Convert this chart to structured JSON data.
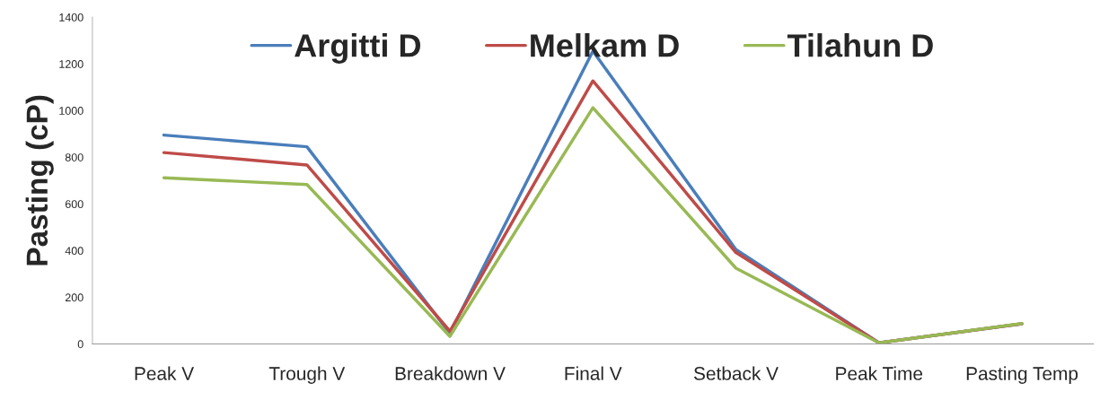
{
  "chart_data": {
    "type": "line",
    "ylabel": "Pasting (cP)",
    "categories": [
      "Peak V",
      "Trough V",
      "Breakdown V",
      "Final V",
      "Setback V",
      "Peak Time",
      "Pasting Temp"
    ],
    "series": [
      {
        "name": "Argitti D",
        "color": "#4a7ebb",
        "values": [
          895,
          845,
          46,
          1255,
          405,
          5,
          87
        ]
      },
      {
        "name": "Melkam D",
        "color": "#be4b48",
        "values": [
          820,
          767,
          55,
          1127,
          392,
          5,
          87
        ]
      },
      {
        "name": "Tilahun D",
        "color": "#98b954",
        "values": [
          712,
          683,
          33,
          1012,
          325,
          5,
          88
        ]
      }
    ],
    "ylim": [
      0,
      1400
    ],
    "yticks": [
      0,
      200,
      400,
      600,
      800,
      1000,
      1200,
      1400
    ],
    "grid": false,
    "legend": "top",
    "marker": "none",
    "line_style": "solid"
  }
}
